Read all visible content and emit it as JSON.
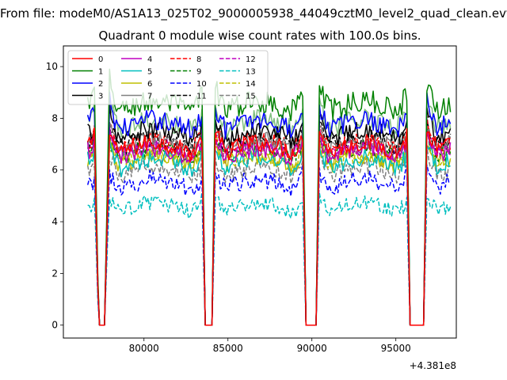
{
  "suptitle": "From file: modeM0/AS1A13_025T02_9000005938_44049cztM0_level2_quad_clean.evt",
  "chart_data": {
    "type": "line",
    "title": "Quadrant 0 module wise count rates with 100.0s bins.",
    "xlabel": "",
    "ylabel": "",
    "x_offset_label": "+4.381e8",
    "x_offset": 438100000,
    "xlim": [
      75200,
      98600
    ],
    "ylim": [
      -0.5,
      10.8
    ],
    "xticks": [
      80000,
      85000,
      90000,
      95000
    ],
    "xtick_labels": [
      "80000",
      "85000",
      "90000",
      "95000"
    ],
    "yticks": [
      0,
      2,
      4,
      6,
      8,
      10
    ],
    "ytick_labels": [
      "0",
      "2",
      "4",
      "6",
      "8",
      "10"
    ],
    "bin_seconds": 100,
    "grid": false,
    "legend": {
      "position": "top-left",
      "ncol": 4
    },
    "gaps": [
      {
        "fall_start": 77050,
        "zero_start": 77300,
        "zero_end": 77650,
        "rise_end": 77950
      },
      {
        "fall_start": 83450,
        "zero_start": 83650,
        "zero_end": 84050,
        "rise_end": 84250
      },
      {
        "fall_start": 89450,
        "zero_start": 89650,
        "zero_end": 90250,
        "rise_end": 90450
      },
      {
        "fall_start": 95650,
        "zero_start": 95850,
        "zero_end": 96650,
        "rise_end": 96850
      }
    ],
    "segments": [
      [
        76650,
        77050
      ],
      [
        77950,
        83450
      ],
      [
        84250,
        89450
      ],
      [
        90450,
        95650
      ],
      [
        96850,
        98300
      ]
    ],
    "series": [
      {
        "name": "0",
        "color": "#ff0000",
        "style": "solid",
        "mean": 6.8,
        "amp": 0.35
      },
      {
        "name": "1",
        "color": "#008000",
        "style": "solid",
        "mean": 8.4,
        "amp": 0.45
      },
      {
        "name": "2",
        "color": "#0000ff",
        "style": "solid",
        "mean": 7.7,
        "amp": 0.4
      },
      {
        "name": "3",
        "color": "#000000",
        "style": "solid",
        "mean": 7.3,
        "amp": 0.4
      },
      {
        "name": "4",
        "color": "#bf00bf",
        "style": "solid",
        "mean": 6.6,
        "amp": 0.35
      },
      {
        "name": "5",
        "color": "#00bfbf",
        "style": "solid",
        "mean": 6.2,
        "amp": 0.35
      },
      {
        "name": "6",
        "color": "#bfbf00",
        "style": "solid",
        "mean": 6.3,
        "amp": 0.35
      },
      {
        "name": "7",
        "color": "#808080",
        "style": "solid",
        "mean": 6.9,
        "amp": 0.35
      },
      {
        "name": "8",
        "color": "#ff0000",
        "style": "dashed",
        "mean": 6.9,
        "amp": 0.35
      },
      {
        "name": "9",
        "color": "#008000",
        "style": "dashed",
        "mean": 6.6,
        "amp": 0.35
      },
      {
        "name": "10",
        "color": "#0000ff",
        "style": "dashed",
        "mean": 5.4,
        "amp": 0.35
      },
      {
        "name": "11",
        "color": "#000000",
        "style": "dashed",
        "mean": 7.0,
        "amp": 0.35
      },
      {
        "name": "12",
        "color": "#bf00bf",
        "style": "dashed",
        "mean": 6.7,
        "amp": 0.35
      },
      {
        "name": "13",
        "color": "#00bfbf",
        "style": "dashed",
        "mean": 4.5,
        "amp": 0.3
      },
      {
        "name": "14",
        "color": "#bfbf00",
        "style": "dashed",
        "mean": 6.4,
        "amp": 0.35
      },
      {
        "name": "15",
        "color": "#808080",
        "style": "dashed",
        "mean": 5.9,
        "amp": 0.35
      },
      {
        "name": "",
        "color": "#7fbf7f",
        "style": "solid",
        "mean": 7.7,
        "amp": 0.4
      }
    ]
  }
}
